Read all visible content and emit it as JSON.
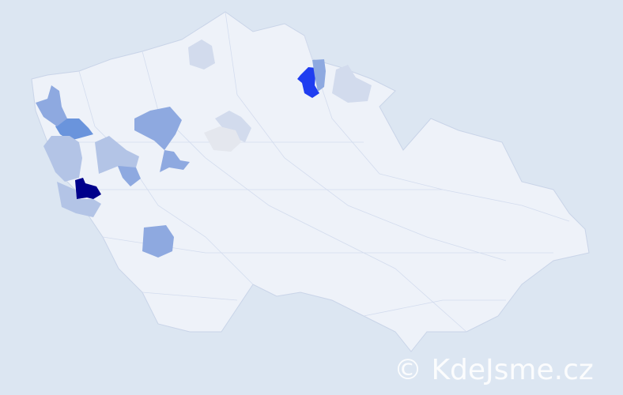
{
  "map": {
    "colors": {
      "background": "#dce6f2",
      "country_fill": "#eef2f9",
      "border": "#c9d4e8",
      "level_darkest": "#00008b",
      "level_high": "#1f3df0",
      "level_mid": "#6a94dc",
      "level_low": "#8ea9e0",
      "level_lower": "#b3c4e6",
      "level_lowest": "#d2dbed",
      "level_grey": "#e4e7ee"
    }
  },
  "watermark": {
    "text": "© KdeJsme.cz"
  }
}
